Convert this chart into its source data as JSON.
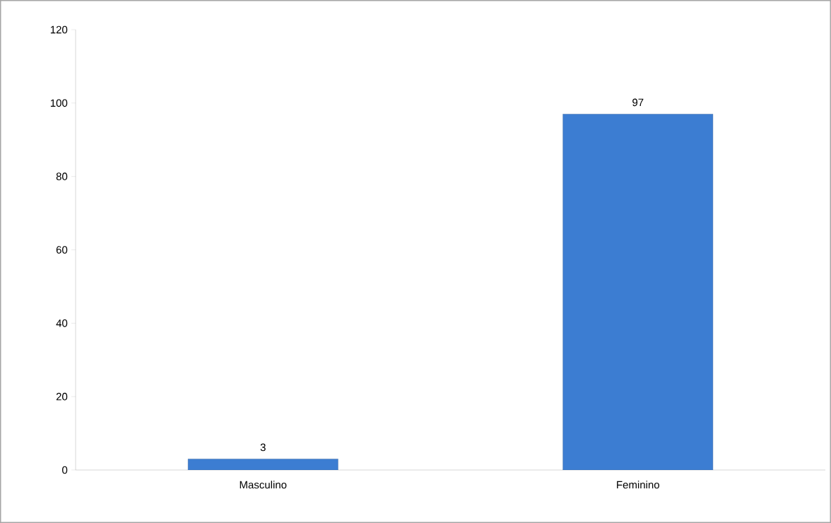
{
  "chart_data": {
    "type": "bar",
    "categories": [
      "Masculino",
      "Feminino"
    ],
    "values": [
      3,
      97
    ],
    "color": "#3c7dd2",
    "ylim": [
      0,
      120
    ],
    "yticks": [
      0,
      20,
      40,
      60,
      80,
      100,
      120
    ],
    "grid": false,
    "data_labels": true
  }
}
